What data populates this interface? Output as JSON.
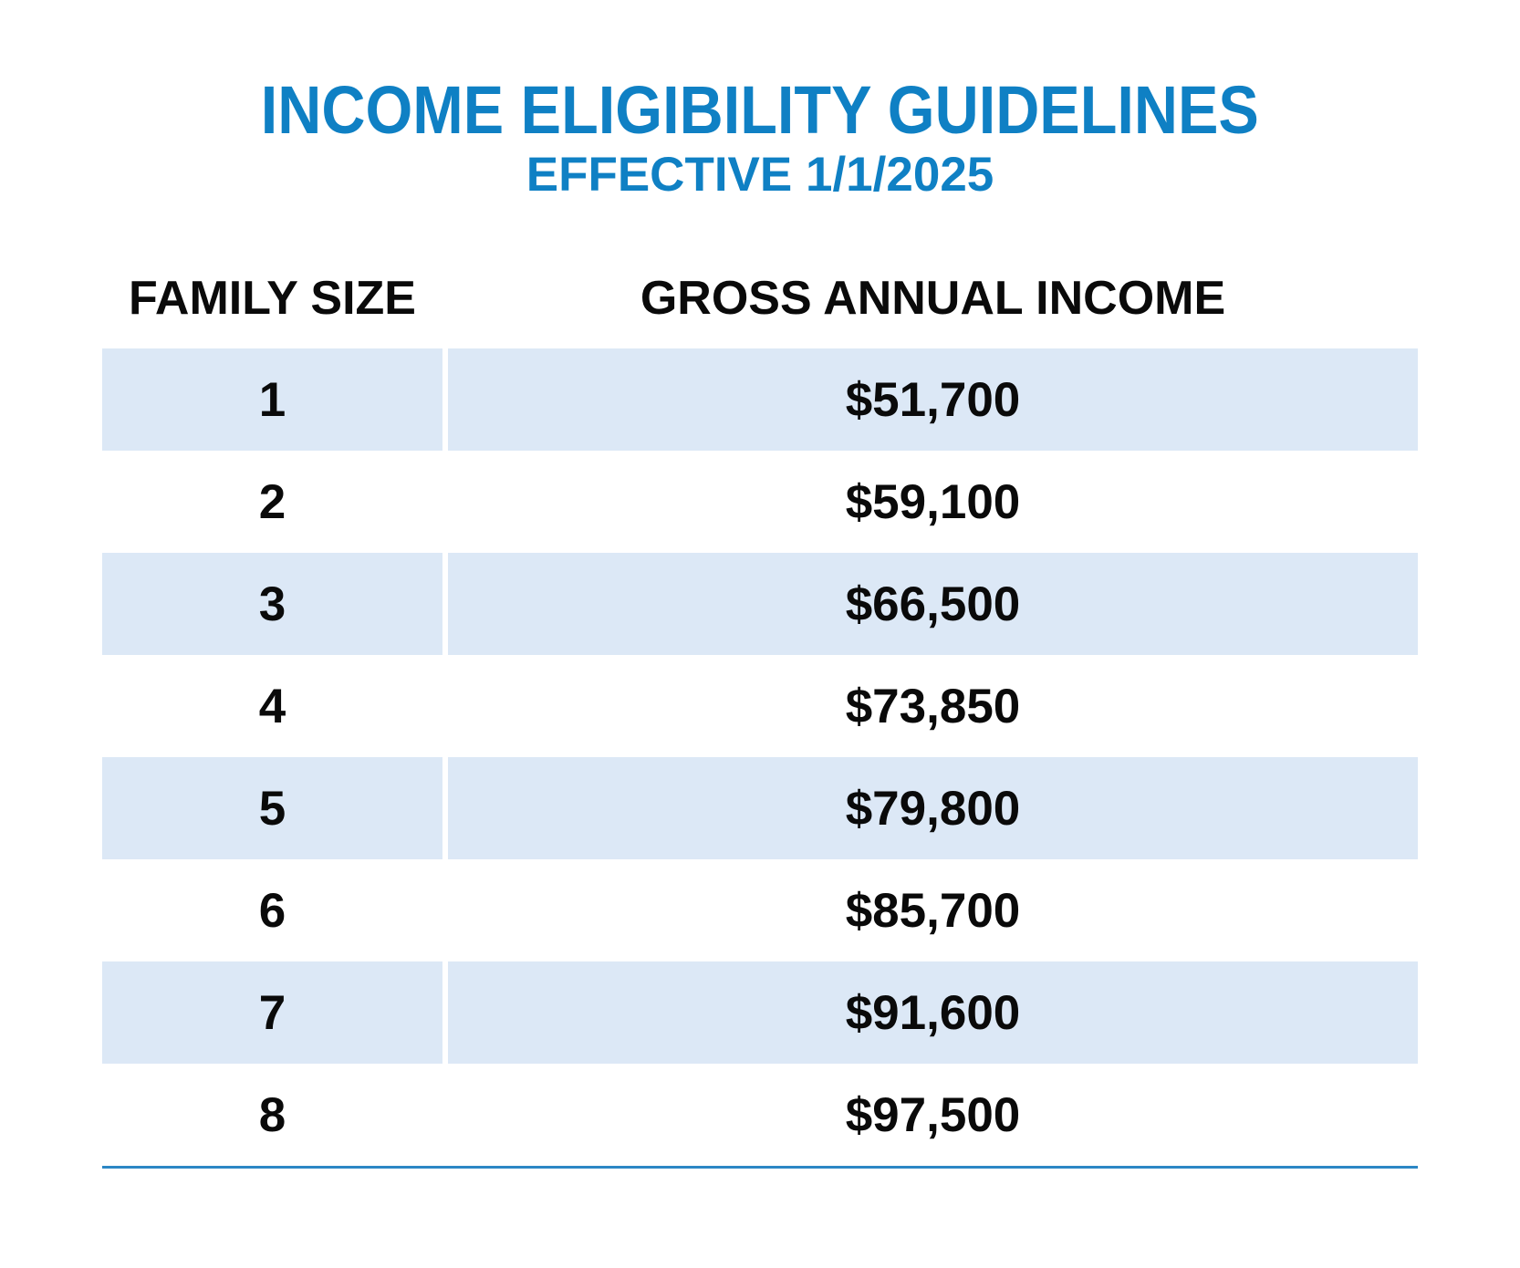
{
  "page": {
    "title": "INCOME ELIGIBILITY GUIDELINES",
    "subtitle": "EFFECTIVE 1/1/2025"
  },
  "colors": {
    "accent_blue": "#0f80c4",
    "divider_blue": "#2b87c5",
    "row_shade": "#dce8f6",
    "text": "#0a0a0a"
  },
  "table": {
    "columns": [
      "FAMILY SIZE",
      "GROSS ANNUAL INCOME"
    ],
    "rows": [
      {
        "family_size": "1",
        "income": "$51,700"
      },
      {
        "family_size": "2",
        "income": "$59,100"
      },
      {
        "family_size": "3",
        "income": "$66,500"
      },
      {
        "family_size": "4",
        "income": "$73,850"
      },
      {
        "family_size": "5",
        "income": "$79,800"
      },
      {
        "family_size": "6",
        "income": "$85,700"
      },
      {
        "family_size": "7",
        "income": "$91,600"
      },
      {
        "family_size": "8",
        "income": "$97,500"
      }
    ]
  }
}
